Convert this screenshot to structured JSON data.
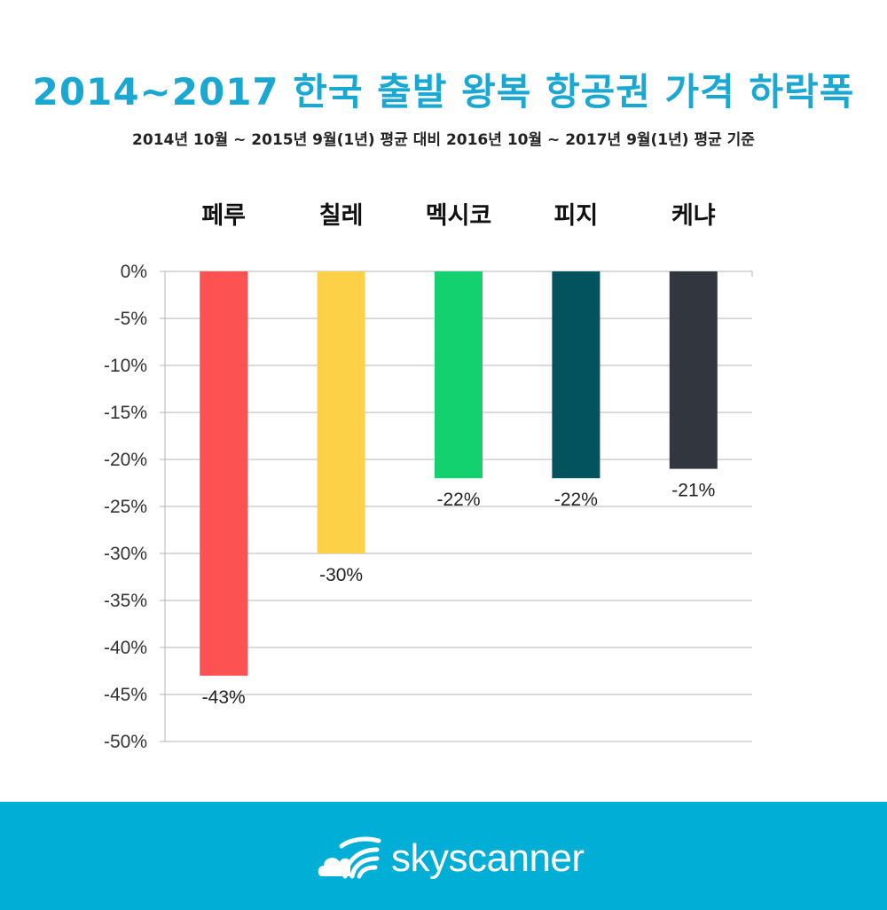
{
  "title": "2014~2017 한국 출발 왕복 항공권 가격 하락폭",
  "subtitle": "2014년 10월 ~ 2015년 9월(1년) 평균 대비 2016년 10월 ~ 2017년 9월(1년) 평균 기준",
  "brand": {
    "name": "skyscanner",
    "color": "#00aed6",
    "icon": "cloud-wave-icon"
  },
  "chart_data": {
    "type": "bar",
    "categories": [
      "페루",
      "칠레",
      "멕시코",
      "피지",
      "케냐"
    ],
    "values": [
      -43,
      -30,
      -22,
      -22,
      -21
    ],
    "data_labels": [
      "-43%",
      "-30%",
      "-22%",
      "-22%",
      "-21%"
    ],
    "colors": [
      "#fd5252",
      "#fdd147",
      "#13d16f",
      "#03535f",
      "#32363f"
    ],
    "ylim": [
      -50,
      0
    ],
    "yticks": [
      0,
      -5,
      -10,
      -15,
      -20,
      -25,
      -30,
      -35,
      -40,
      -45,
      -50
    ],
    "ytick_labels": [
      "0%",
      "-5%",
      "-10%",
      "-15%",
      "-20%",
      "-25%",
      "-30%",
      "-35%",
      "-40%",
      "-45%",
      "-50%"
    ],
    "xlabel": "",
    "ylabel": "",
    "grid": true,
    "category_labels_position": "top"
  }
}
